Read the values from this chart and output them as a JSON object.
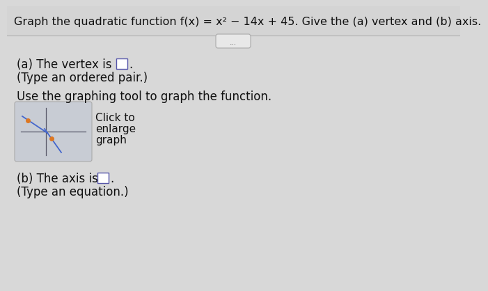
{
  "title": "Graph the quadratic function f(x) = x² − 14x + 45. Give the (a) vertex and (b) axis.",
  "bg_color": "#d8d8d8",
  "top_bg_color": "#d0d0d0",
  "body_bg_color": "#d8d8d8",
  "text_color": "#111111",
  "part_a_label": "(a) The vertex is",
  "part_a_sub": "(Type an ordered pair.)",
  "use_graph_label": "Use the graphing tool to graph the function.",
  "click_line1": "Click to",
  "click_line2": "enlarge",
  "click_line3": "graph",
  "part_b_label": "(b) The axis is",
  "part_b_sub": "(Type an equation.)",
  "divider_color": "#b0b0b0",
  "dots_label": "...",
  "dots_box_color": "#e8e8e8",
  "dots_box_border": "#aaaaaa",
  "mini_graph_bg": "#c8ccd4",
  "mini_graph_border": "#999999",
  "mini_graph_line_color": "#4466cc",
  "mini_graph_dot_color": "#dd7722",
  "mini_graph_axis_color": "#555566",
  "answer_box_border": "#5555aa",
  "answer_box_fill": "#ffffff",
  "title_fontsize": 11.5,
  "body_fontsize": 12,
  "sub_fontsize": 12
}
